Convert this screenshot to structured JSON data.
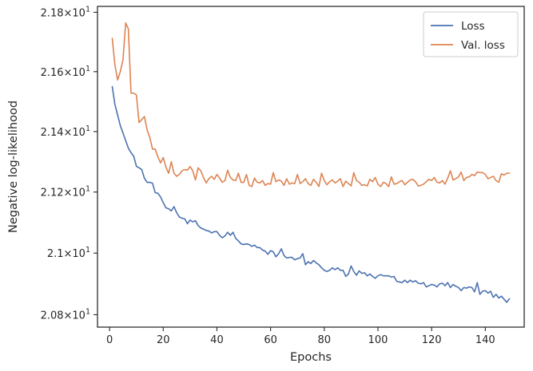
{
  "chart_data": {
    "type": "line",
    "xlabel": "Epochs",
    "ylabel": "Negative log-likelihood",
    "x_ticks": [
      0,
      20,
      40,
      60,
      80,
      100,
      120,
      140
    ],
    "xlim": [
      -4.5,
      154.5
    ],
    "y_scale": "log",
    "ylim": [
      20.76,
      21.82
    ],
    "y_ticks": [
      {
        "value": 20.8,
        "base": "2.08",
        "exp": "1"
      },
      {
        "value": 21.0,
        "base": "2.1",
        "exp": "1"
      },
      {
        "value": 21.2,
        "base": "2.12",
        "exp": "1"
      },
      {
        "value": 21.4,
        "base": "2.14",
        "exp": "1"
      },
      {
        "value": 21.6,
        "base": "2.16",
        "exp": "1"
      },
      {
        "value": 21.8,
        "base": "2.18",
        "exp": "1"
      }
    ],
    "times_sign": "×",
    "y_tick_prefix": "10",
    "grid": false,
    "legend_position": "top-right",
    "series": [
      {
        "name": "Loss",
        "color": "#4c72b0",
        "x": [
          1,
          2,
          3,
          4,
          5,
          6,
          7,
          8,
          9,
          10,
          11,
          12,
          13,
          14,
          15,
          16,
          17,
          18,
          19,
          20,
          21,
          22,
          23,
          24,
          25,
          26,
          27,
          28,
          29,
          30,
          31,
          32,
          33,
          34,
          35,
          36,
          37,
          38,
          39,
          40,
          41,
          42,
          43,
          44,
          45,
          46,
          47,
          48,
          49,
          50,
          51,
          52,
          53,
          54,
          55,
          56,
          57,
          58,
          59,
          60,
          61,
          62,
          63,
          64,
          65,
          66,
          67,
          68,
          69,
          70,
          71,
          72,
          73,
          74,
          75,
          76,
          77,
          78,
          79,
          80,
          81,
          82,
          83,
          84,
          85,
          86,
          87,
          88,
          89,
          90,
          91,
          92,
          93,
          94,
          95,
          96,
          97,
          98,
          99,
          100,
          101,
          102,
          103,
          104,
          105,
          106,
          107,
          108,
          109,
          110,
          111,
          112,
          113,
          114,
          115,
          116,
          117,
          118,
          119,
          120,
          121,
          122,
          123,
          124,
          125,
          126,
          127,
          128,
          129,
          130,
          131,
          132,
          133,
          134,
          135,
          136,
          137,
          138,
          139,
          140,
          141,
          142,
          143,
          144,
          145,
          146,
          147,
          148,
          149
        ],
        "values": [
          21.55,
          21.49,
          21.455,
          21.42,
          21.395,
          21.37,
          21.345,
          21.33,
          21.318,
          21.285,
          21.28,
          21.274,
          21.245,
          21.232,
          21.232,
          21.229,
          21.198,
          21.196,
          21.184,
          21.165,
          21.148,
          21.145,
          21.138,
          21.152,
          21.132,
          21.118,
          21.114,
          21.112,
          21.096,
          21.108,
          21.102,
          21.106,
          21.09,
          21.082,
          21.078,
          21.074,
          21.072,
          21.066,
          21.07,
          21.07,
          21.058,
          21.05,
          21.056,
          21.068,
          21.058,
          21.068,
          21.048,
          21.04,
          21.03,
          21.028,
          21.03,
          21.028,
          21.022,
          21.026,
          21.018,
          21.018,
          21.01,
          21.006,
          20.996,
          21.008,
          21.004,
          20.988,
          20.998,
          21.014,
          20.992,
          20.984,
          20.986,
          20.986,
          20.978,
          20.982,
          20.984,
          20.998,
          20.962,
          20.972,
          20.966,
          20.976,
          20.968,
          20.962,
          20.952,
          20.944,
          20.94,
          20.944,
          20.952,
          20.946,
          20.952,
          20.944,
          20.944,
          20.924,
          20.932,
          20.958,
          20.94,
          20.928,
          20.942,
          20.934,
          20.936,
          20.926,
          20.932,
          20.924,
          20.918,
          20.926,
          20.93,
          20.926,
          20.926,
          20.926,
          20.922,
          20.924,
          20.908,
          20.906,
          20.904,
          20.912,
          20.904,
          20.912,
          20.906,
          20.91,
          20.902,
          20.9,
          20.904,
          20.89,
          20.894,
          20.898,
          20.896,
          20.89,
          20.9,
          20.902,
          20.894,
          20.904,
          20.888,
          20.898,
          20.892,
          20.888,
          20.878,
          20.888,
          20.886,
          20.89,
          20.888,
          20.874,
          20.904,
          20.866,
          20.876,
          20.878,
          20.87,
          20.876,
          20.856,
          20.866,
          20.854,
          20.86,
          20.85,
          20.84,
          20.852
        ],
        "note": ""
      },
      {
        "name": "Val. loss",
        "color": "#dd8452",
        "x": [
          1,
          2,
          3,
          4,
          5,
          6,
          7,
          8,
          9,
          10,
          11,
          12,
          13,
          14,
          15,
          16,
          17,
          18,
          19,
          20,
          21,
          22,
          23,
          24,
          25,
          26,
          27,
          28,
          29,
          30,
          31,
          32,
          33,
          34,
          35,
          36,
          37,
          38,
          39,
          40,
          41,
          42,
          43,
          44,
          45,
          46,
          47,
          48,
          49,
          50,
          51,
          52,
          53,
          54,
          55,
          56,
          57,
          58,
          59,
          60,
          61,
          62,
          63,
          64,
          65,
          66,
          67,
          68,
          69,
          70,
          71,
          72,
          73,
          74,
          75,
          76,
          77,
          78,
          79,
          80,
          81,
          82,
          83,
          84,
          85,
          86,
          87,
          88,
          89,
          90,
          91,
          92,
          93,
          94,
          95,
          96,
          97,
          98,
          99,
          100,
          101,
          102,
          103,
          104,
          105,
          106,
          107,
          108,
          109,
          110,
          111,
          112,
          113,
          114,
          115,
          116,
          117,
          118,
          119,
          120,
          121,
          122,
          123,
          124,
          125,
          126,
          127,
          128,
          129,
          130,
          131,
          132,
          133,
          134,
          135,
          136,
          137,
          138,
          139,
          140,
          141,
          142,
          143,
          144,
          145,
          146,
          147,
          148,
          149
        ],
        "values": [
          21.712,
          21.622,
          21.572,
          21.6,
          21.64,
          21.764,
          21.744,
          21.528,
          21.528,
          21.522,
          21.43,
          21.44,
          21.45,
          21.405,
          21.38,
          21.342,
          21.342,
          21.316,
          21.296,
          21.314,
          21.282,
          21.262,
          21.3,
          21.262,
          21.252,
          21.258,
          21.27,
          21.274,
          21.272,
          21.284,
          21.27,
          21.24,
          21.28,
          21.27,
          21.248,
          21.23,
          21.244,
          21.252,
          21.242,
          21.258,
          21.246,
          21.232,
          21.238,
          21.272,
          21.248,
          21.24,
          21.238,
          21.262,
          21.232,
          21.232,
          21.258,
          21.222,
          21.218,
          21.246,
          21.232,
          21.23,
          21.238,
          21.222,
          21.228,
          21.226,
          21.264,
          21.234,
          21.24,
          21.236,
          21.222,
          21.244,
          21.226,
          21.23,
          21.228,
          21.258,
          21.228,
          21.234,
          21.244,
          21.228,
          21.222,
          21.242,
          21.232,
          21.218,
          21.262,
          21.238,
          21.224,
          21.234,
          21.24,
          21.23,
          21.236,
          21.244,
          21.218,
          21.236,
          21.228,
          21.22,
          21.264,
          21.238,
          21.232,
          21.222,
          21.224,
          21.22,
          21.242,
          21.234,
          21.248,
          21.226,
          21.218,
          21.232,
          21.228,
          21.218,
          21.25,
          21.226,
          21.228,
          21.234,
          21.238,
          21.224,
          21.232,
          21.24,
          21.242,
          21.234,
          21.22,
          21.222,
          21.226,
          21.234,
          21.242,
          21.238,
          21.248,
          21.232,
          21.23,
          21.238,
          21.226,
          21.246,
          21.27,
          21.24,
          21.244,
          21.25,
          21.266,
          21.238,
          21.248,
          21.25,
          21.258,
          21.254,
          21.266,
          21.264,
          21.264,
          21.258,
          21.244,
          21.248,
          21.252,
          21.238,
          21.232,
          21.26,
          21.256,
          21.262,
          21.262
        ],
        "note": ""
      }
    ]
  }
}
